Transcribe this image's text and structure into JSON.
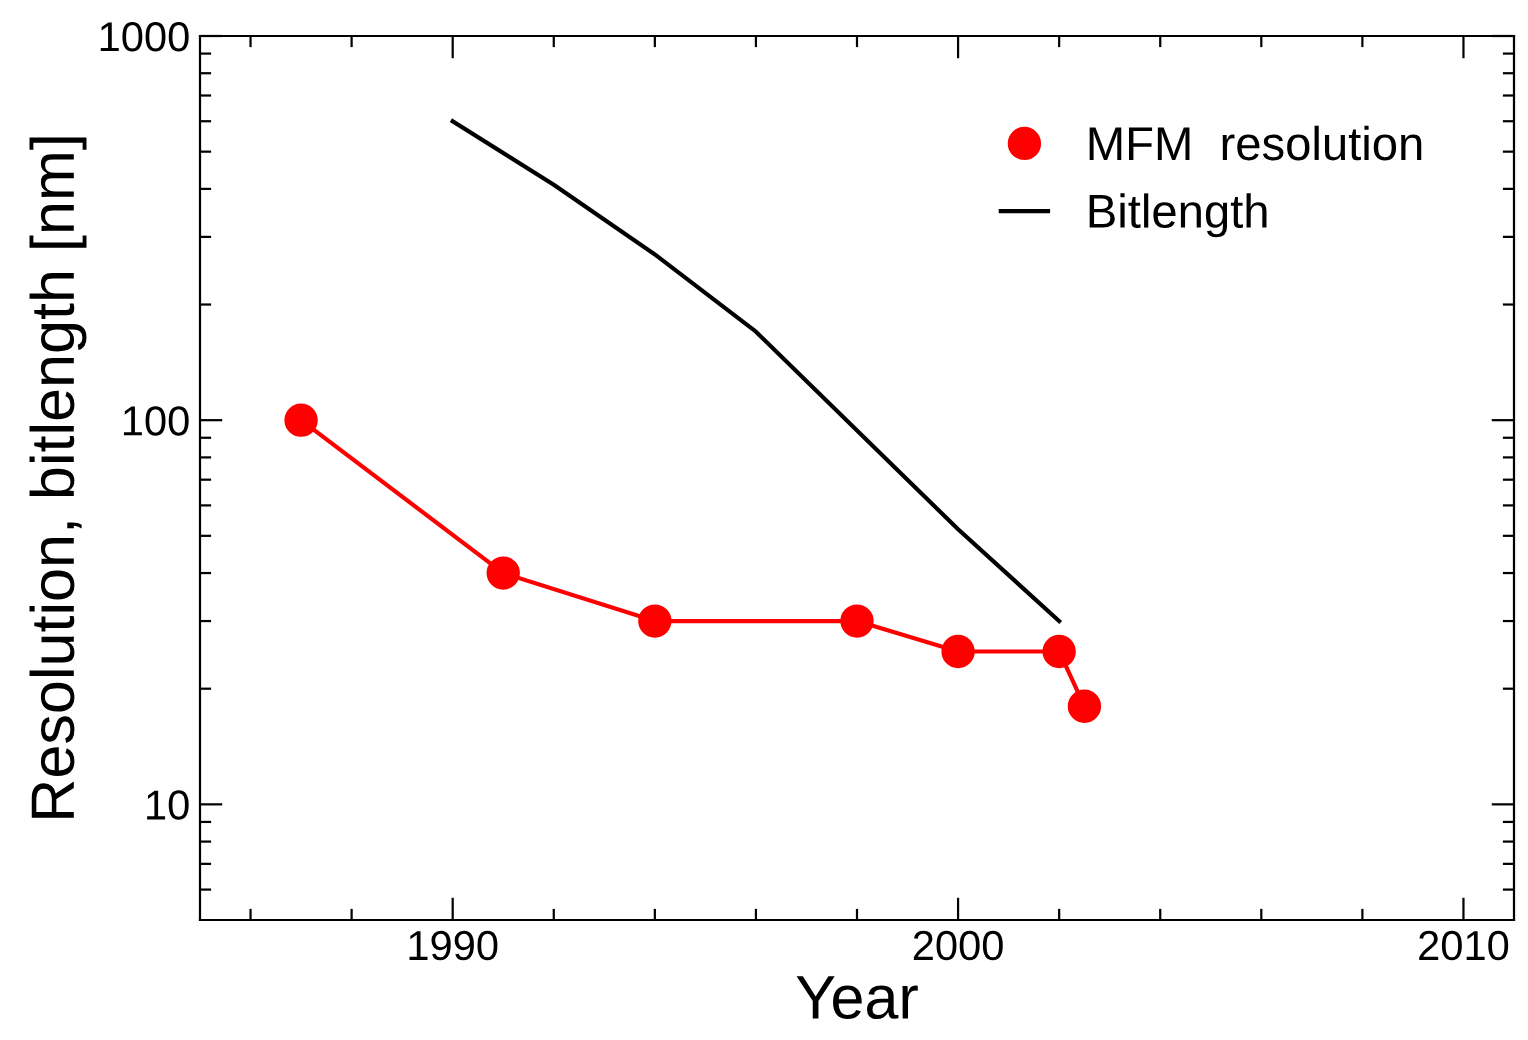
{
  "chart_data": {
    "type": "line",
    "xlabel": "Year",
    "ylabel": "Resolution, bitlength [nm]",
    "log": "y",
    "legend": "top right",
    "grid": false,
    "xlim": [
      1985,
      2011
    ],
    "ylim": [
      5,
      1000
    ],
    "xticks": [
      {
        "value": 1986,
        "label": null
      },
      {
        "value": 1988,
        "label": null
      },
      1990,
      {
        "value": 1992,
        "label": null
      },
      {
        "value": 1994,
        "label": null
      },
      {
        "value": 1996,
        "label": null
      },
      {
        "value": 1998,
        "label": null
      },
      2000,
      {
        "value": 2002,
        "label": null
      },
      {
        "value": 2004,
        "label": null
      },
      {
        "value": 2006,
        "label": null
      },
      {
        "value": 2008,
        "label": null
      },
      2010
    ],
    "yticks": [
      {
        "value": 6,
        "label": null
      },
      {
        "value": 7,
        "label": null
      },
      {
        "value": 8,
        "label": null
      },
      {
        "value": 9,
        "label": null
      },
      10,
      {
        "value": 20,
        "label": null
      },
      {
        "value": 30,
        "label": null
      },
      {
        "value": 40,
        "label": null
      },
      {
        "value": 50,
        "label": null
      },
      {
        "value": 60,
        "label": null
      },
      {
        "value": 70,
        "label": null
      },
      {
        "value": 80,
        "label": null
      },
      {
        "value": 90,
        "label": null
      },
      100,
      {
        "value": 200,
        "label": null
      },
      {
        "value": 300,
        "label": null
      },
      {
        "value": 400,
        "label": null
      },
      {
        "value": 500,
        "label": null
      },
      {
        "value": 600,
        "label": null
      },
      {
        "value": 700,
        "label": null
      },
      {
        "value": 800,
        "label": null
      },
      {
        "value": 900,
        "label": null
      },
      1000
    ],
    "series": [
      {
        "name": "MFM  resolution",
        "color": "#ff0000",
        "marker": "circle",
        "x": [
          1987,
          1991,
          1994,
          1998,
          2000,
          2002,
          2002.5
        ],
        "values": [
          100,
          40,
          30,
          30,
          25,
          25,
          18
        ]
      },
      {
        "name": "Bitlength",
        "color": "#000000",
        "marker": "none",
        "x": [
          1990,
          1992,
          1994,
          1996,
          2000,
          2002
        ],
        "values": [
          600,
          410,
          270,
          170,
          52,
          30
        ]
      }
    ]
  }
}
